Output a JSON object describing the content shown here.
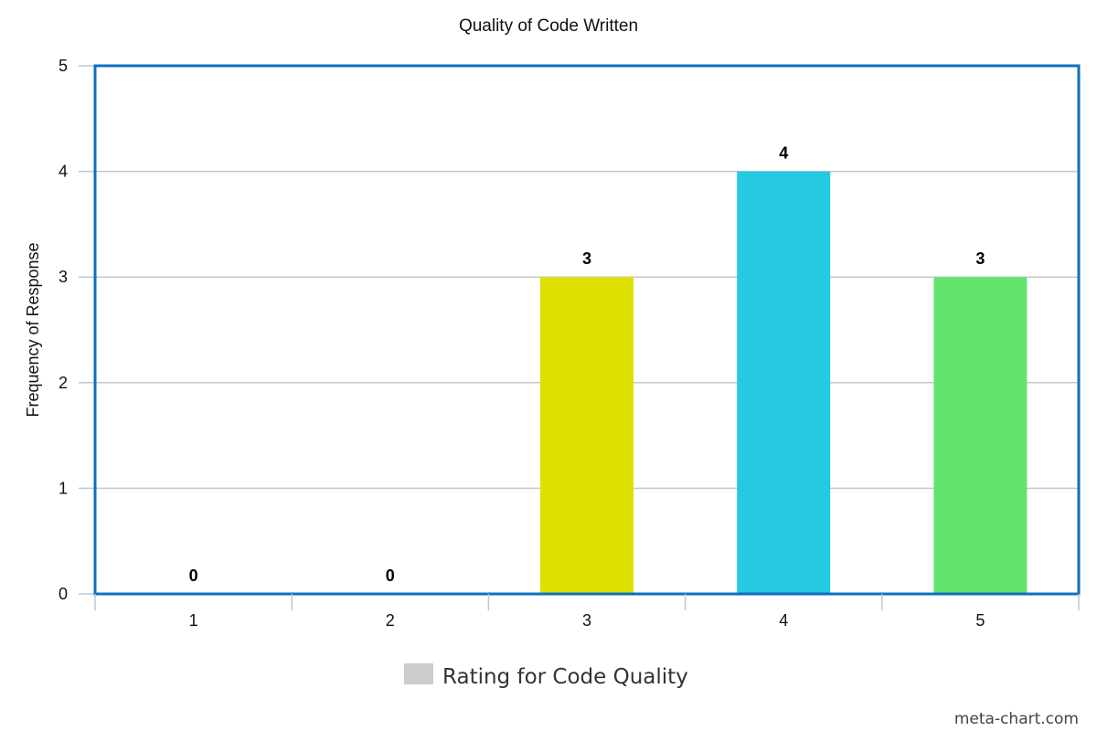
{
  "chart_data": {
    "type": "bar",
    "title": "Quality of Code Written",
    "xlabel": "",
    "ylabel": "Frequency of Response",
    "categories": [
      "1",
      "2",
      "3",
      "4",
      "5"
    ],
    "values": [
      0,
      0,
      3,
      4,
      3
    ],
    "data_labels": [
      "0",
      "0",
      "3",
      "4",
      "3"
    ],
    "bar_colors": [
      "#cccccc",
      "#cccccc",
      "#dde000",
      "#25c9e2",
      "#63e46f"
    ],
    "ylim": [
      0,
      5
    ],
    "yticks": [
      "0",
      "1",
      "2",
      "3",
      "4",
      "5"
    ],
    "grid": true,
    "legend": {
      "placement": "bottom-center",
      "entries": [
        {
          "label": "Rating for Code Quality",
          "color": "#cccccc"
        }
      ]
    },
    "plot_border_color": "#0f6fbc",
    "gridline_color": "#c8c8c8",
    "axis_color": "#b8cad8"
  },
  "watermark": "meta-chart.com"
}
